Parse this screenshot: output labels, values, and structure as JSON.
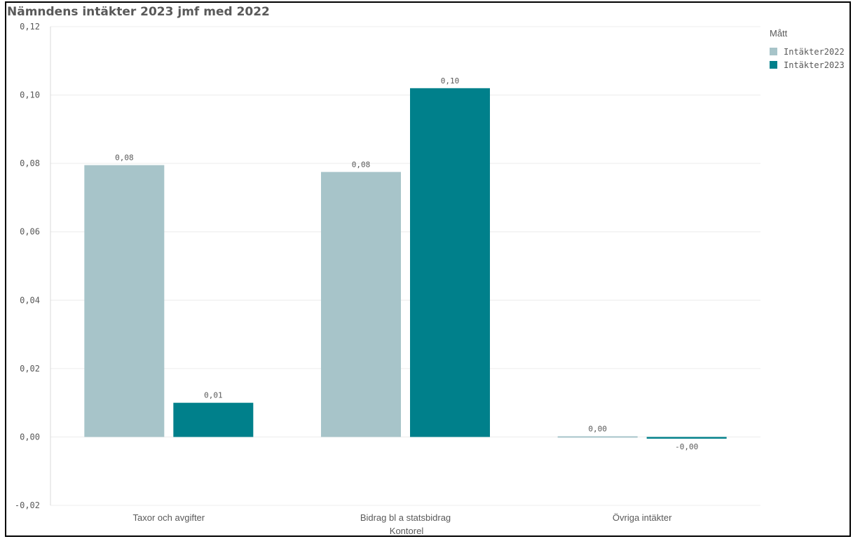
{
  "chart_data": {
    "type": "bar",
    "title": "Nämndens intäkter 2023 jmf med 2022",
    "xlabel": "Kontorel",
    "ylabel": "",
    "ylim": [
      -0.02,
      0.12
    ],
    "yticks": [
      -0.02,
      0.0,
      0.02,
      0.04,
      0.06,
      0.08,
      0.1,
      0.12
    ],
    "ytick_labels": [
      "-0,02",
      "0,00",
      "0,02",
      "0,04",
      "0,06",
      "0,08",
      "0,10",
      "0,12"
    ],
    "grid": true,
    "legend_title": "Mått",
    "legend_position": "top-right",
    "categories": [
      "Taxor och avgifter",
      "Bidrag bl a statsbidrag",
      "Övriga intäkter"
    ],
    "series": [
      {
        "name": "Intäkter2022",
        "color": "#a7c4c9",
        "values": [
          0.0795,
          0.0775,
          0.0002
        ],
        "labels": [
          "0,08",
          "0,08",
          "0,00"
        ]
      },
      {
        "name": "Intäkter2023",
        "color": "#00808b",
        "values": [
          0.01,
          0.102,
          -0.0005
        ],
        "labels": [
          "0,01",
          "0,10",
          "-0,00"
        ]
      }
    ]
  }
}
